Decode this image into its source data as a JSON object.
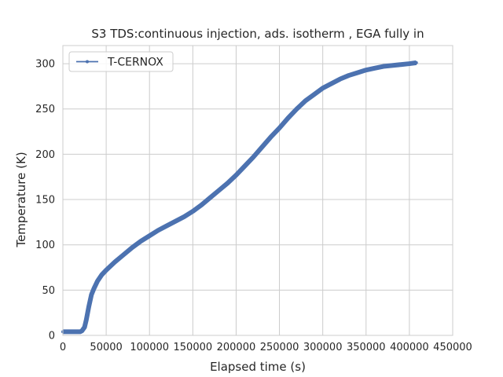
{
  "chart_data": {
    "type": "line",
    "title": "S3 TDS:continuous injection, ads. isotherm , EGA fully in",
    "xlabel": "Elapsed time (s)",
    "ylabel": "Temperature (K)",
    "xlim": [
      0,
      450000
    ],
    "ylim": [
      0,
      320
    ],
    "xticks": [
      0,
      50000,
      100000,
      150000,
      200000,
      250000,
      300000,
      350000,
      400000,
      450000
    ],
    "yticks": [
      0,
      50,
      100,
      150,
      200,
      250,
      300
    ],
    "grid": true,
    "legend": {
      "position": "top-left",
      "entries": [
        "T-CERNOX"
      ]
    },
    "series": [
      {
        "name": "T-CERNOX",
        "color": "#4c72b0",
        "marker": "point",
        "x": [
          0,
          10000,
          20000,
          22000,
          25000,
          27000,
          30000,
          33000,
          36000,
          40000,
          45000,
          50000,
          60000,
          70000,
          80000,
          90000,
          100000,
          110000,
          120000,
          130000,
          140000,
          150000,
          160000,
          170000,
          180000,
          190000,
          200000,
          210000,
          220000,
          230000,
          240000,
          250000,
          260000,
          270000,
          280000,
          290000,
          300000,
          310000,
          320000,
          330000,
          340000,
          350000,
          360000,
          370000,
          380000,
          390000,
          400000,
          408000
        ],
        "y": [
          4,
          4,
          4,
          5,
          9,
          17,
          32,
          45,
          52,
          60,
          67,
          72,
          81,
          89,
          97,
          104,
          110,
          116,
          121,
          126,
          131,
          137,
          144,
          152,
          160,
          168,
          177,
          187,
          197,
          208,
          219,
          229,
          240,
          250,
          259,
          266,
          273,
          278,
          283,
          287,
          290,
          293,
          295,
          297,
          298,
          299,
          300,
          301
        ]
      }
    ]
  }
}
